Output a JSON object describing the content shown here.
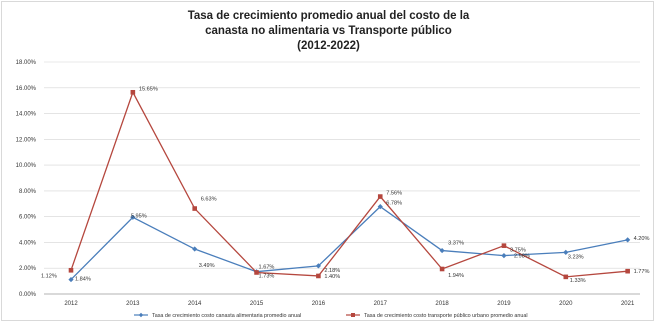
{
  "chart_data": {
    "type": "line",
    "title_lines": [
      "Tasa de crecimiento promedio anual del costo de la",
      "canasta no alimentaria vs Transporte público",
      "(2012-2022)"
    ],
    "xlabel": "",
    "ylabel": "",
    "categories": [
      "2012",
      "2013",
      "2014",
      "2015",
      "2016",
      "2017",
      "2018",
      "2019",
      "2020",
      "2021"
    ],
    "ylim": [
      0,
      18
    ],
    "yticks": [
      0,
      2,
      4,
      6,
      8,
      10,
      12,
      14,
      16,
      18
    ],
    "ytick_labels": [
      "0.00%",
      "2.00%",
      "4.00%",
      "6.00%",
      "8.00%",
      "10.00%",
      "12.00%",
      "14.00%",
      "16.00%",
      "18.00%"
    ],
    "grid": true,
    "legend_position": "bottom",
    "series": [
      {
        "name": "Tasa de crecimiento costo canasta alimentaria promedio anual",
        "color": "#4a7ebb",
        "marker": "diamond",
        "values": [
          1.12,
          5.95,
          3.49,
          1.73,
          2.18,
          6.78,
          3.37,
          2.98,
          3.23,
          4.2
        ],
        "labels": [
          "1.12%",
          "5.95%",
          "3.49%",
          "1.73%",
          "2.18%",
          "6.78%",
          "3.37%",
          "2.98%",
          "3.23%",
          "4.20%"
        ]
      },
      {
        "name": "Tasa de crecimiento costo transporte público urbano promedio anual",
        "color": "#b5473e",
        "marker": "square",
        "values": [
          1.84,
          15.65,
          6.63,
          1.67,
          1.4,
          7.56,
          1.94,
          3.75,
          1.33,
          1.77
        ],
        "labels": [
          "1.84%",
          "15.65%",
          "6.63%",
          "1.67%",
          "1.40%",
          "7.56%",
          "1.94%",
          "3.75%",
          "1.33%",
          "1.77%"
        ]
      }
    ]
  }
}
